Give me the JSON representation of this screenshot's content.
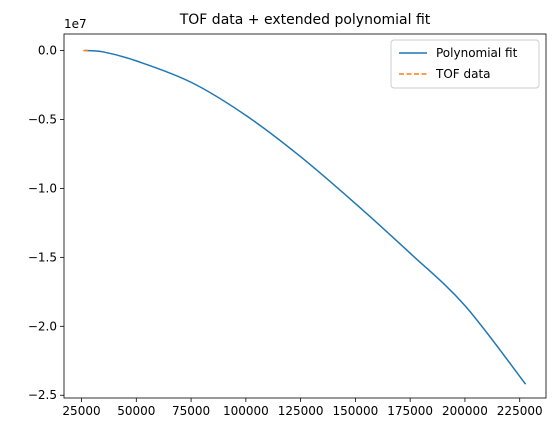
{
  "chart_data": {
    "type": "line",
    "title": "TOF data + extended polynomial fit",
    "xlabel": "",
    "ylabel": "",
    "xlim": [
      17000,
      237000
    ],
    "ylim": [
      -25.2,
      1.2
    ],
    "y_offset_label": "1e7",
    "x_ticks": [
      25000,
      50000,
      75000,
      100000,
      125000,
      150000,
      175000,
      200000,
      225000
    ],
    "x_tick_labels": [
      "25000",
      "50000",
      "75000",
      "100000",
      "125000",
      "150000",
      "175000",
      "200000",
      "225000"
    ],
    "y_ticks": [
      0.0,
      -5.0,
      -10.0,
      -15.0,
      -20.0,
      -25.0
    ],
    "y_tick_labels": [
      "0.0",
      "−0.5",
      "−1.0",
      "−1.5",
      "−2.0",
      "−2.5"
    ],
    "grid": false,
    "legend_position": "top-right",
    "series": [
      {
        "name": "Polynomial fit",
        "color": "#1f77b4",
        "style": "solid",
        "x": [
          26500,
          35000,
          50000,
          75000,
          100000,
          125000,
          150000,
          175000,
          200000,
          227700
        ],
        "y": [
          0.0,
          -0.1,
          -0.75,
          -2.3,
          -4.7,
          -7.7,
          -11.1,
          -14.7,
          -18.5,
          -24.2
        ]
      },
      {
        "name": "TOF data",
        "color": "#ff7f0e",
        "style": "dashed",
        "x": [
          25800,
          28000
        ],
        "y": [
          0.0,
          0.0
        ]
      }
    ]
  }
}
